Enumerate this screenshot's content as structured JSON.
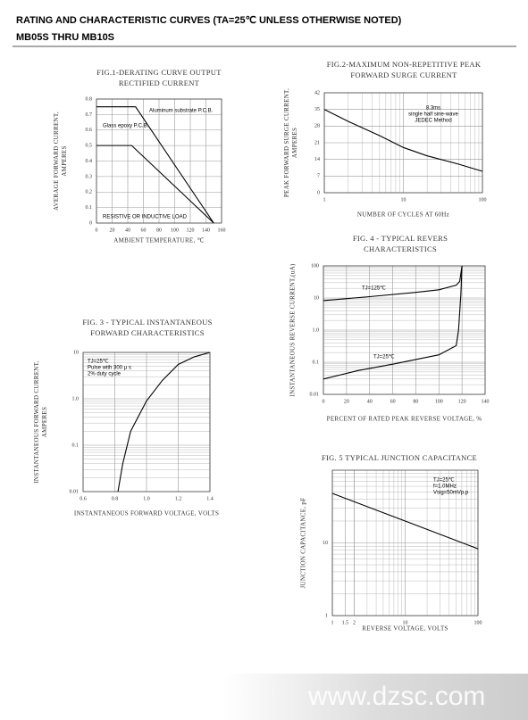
{
  "header": {
    "line1": "RATING AND CHARACTERISTIC CURVES (TA=25℃ UNLESS OTHERWISE NOTED)",
    "line2": "MB05S THRU MB10S"
  },
  "watermark": "www.dzsc.com",
  "chart_data": [
    {
      "type": "line",
      "title": [
        "FIG.1-DERATING CURVE OUTPUT",
        "RECTIFIED CURRENT"
      ],
      "xlabel": "AMBIENT TEMPERATURE, ℃",
      "ylabel": [
        "AVERAGE FORWARD CURRENT,",
        "AMPERES"
      ],
      "xlim": [
        0,
        160
      ],
      "xticks": [
        0,
        20,
        40,
        60,
        80,
        100,
        120,
        140,
        160
      ],
      "ylim": [
        0,
        0.8
      ],
      "yticks": [
        0,
        0.1,
        0.2,
        0.3,
        0.4,
        0.5,
        0.6,
        0.7,
        0.8
      ],
      "grid": true,
      "series": [
        {
          "name": "Aluminum substrate P.C.B.",
          "color": "#000000",
          "x": [
            0,
            50,
            150
          ],
          "values": [
            0.75,
            0.75,
            0
          ]
        },
        {
          "name": "Glass epoxy P.C.B.",
          "color": "#000000",
          "x": [
            0,
            45,
            150
          ],
          "values": [
            0.5,
            0.5,
            0
          ]
        }
      ],
      "annotations": [
        [
          "RESISTIVE OR INDUCTIVE LOAD"
        ]
      ]
    },
    {
      "type": "line",
      "title": [
        "FIG.2-MAXIMUM NON-REPETITIVE PEAK",
        "FORWARD SURGE CURRENT"
      ],
      "xlabel": "NUMBER OF CYCLES AT 60Hz",
      "ylabel": [
        "PEAK FORWARD SURGE CURRENT,",
        "AMPERES"
      ],
      "xscale": "log",
      "xlim": [
        1,
        100
      ],
      "xticks": [
        1,
        10,
        100
      ],
      "ylim": [
        0,
        42
      ],
      "yticks": [
        0,
        7,
        14,
        21,
        28,
        35,
        42
      ],
      "grid": true,
      "series": [
        {
          "color": "#000000",
          "x": [
            1,
            2,
            5,
            10,
            20,
            50,
            100
          ],
          "values": [
            35,
            30,
            24,
            19,
            15.5,
            12,
            9
          ]
        }
      ],
      "annotations": [
        [
          "8.3ms",
          "single half sine-wave",
          "JEDEC Method"
        ]
      ]
    },
    {
      "type": "line",
      "title": [
        "FIG. 3 - TYPICAL  INSTANTANEOUS",
        "FORWARD CHARACTERISTICS"
      ],
      "xlabel": "INSTANTANEOUS FORWARD VOLTAGE, VOLTS",
      "ylabel": [
        "INSTANTANEOUS FORWARD CURRENT,",
        "AMPERES"
      ],
      "xlim": [
        0.6,
        1.4
      ],
      "xticks": [
        0.6,
        0.8,
        {
          "value": 1,
          "label": "1.0"
        },
        1.2,
        1.4
      ],
      "yscale": "log",
      "ylim": [
        0.01,
        10
      ],
      "yticks": [
        0.01,
        0.1,
        {
          "value": 1,
          "label": "1.0"
        },
        10
      ],
      "grid": true,
      "series": [
        {
          "color": "#000000",
          "x": [
            0.82,
            0.85,
            0.9,
            1.0,
            1.1,
            1.2,
            1.3,
            1.4
          ],
          "values": [
            0.01,
            0.04,
            0.2,
            0.9,
            2.5,
            5.5,
            8,
            10
          ]
        }
      ],
      "annotations": [
        [
          "TJ=25℃",
          "Pulse with 300 μ s",
          "2% duty cycle"
        ]
      ]
    },
    {
      "type": "line",
      "title": [
        "FIG. 4 - TYPICAL REVERS",
        "CHARACTERISTICS"
      ],
      "xlabel": "PERCENT OF RATED PEAK REVERSE VOLTAGE, %",
      "ylabel": [
        "INSTANTANEOUS REVERSE CURRENT,(uA)"
      ],
      "xlim": [
        0,
        140
      ],
      "xticks": [
        0,
        20,
        40,
        60,
        80,
        100,
        120,
        140
      ],
      "yscale": "log",
      "ylim": [
        0.01,
        100
      ],
      "yticks": [
        0.01,
        0.1,
        {
          "value": 1,
          "label": "1.0"
        },
        10,
        100
      ],
      "grid": true,
      "series": [
        {
          "name": "TJ=125℃",
          "color": "#000000",
          "x": [
            0,
            40,
            80,
            100,
            115,
            118,
            120
          ],
          "values": [
            8.3,
            11,
            15,
            18,
            25,
            33,
            100
          ]
        },
        {
          "name": "TJ=25℃",
          "color": "#000000",
          "x": [
            0,
            30,
            60,
            100,
            115,
            117,
            119,
            120
          ],
          "values": [
            0.03,
            0.055,
            0.087,
            0.17,
            0.33,
            1,
            13,
            100
          ]
        }
      ],
      "annotations": []
    },
    {
      "type": "line",
      "title": [
        "FIG. 5  TYPICAL JUNCTION CAPACITANCE"
      ],
      "xlabel": "REVERSE VOLTAGE, VOLTS",
      "ylabel": [
        "JUNCTION CAPACITANCE, pF"
      ],
      "xscale": "log",
      "xlim": [
        1,
        100
      ],
      "xticks": [
        1,
        1.5,
        2,
        10,
        100
      ],
      "yscale": "log",
      "ylim": [
        1,
        100
      ],
      "yticks": [
        1,
        10
      ],
      "grid": true,
      "series": [
        {
          "color": "#000000",
          "x": [
            1,
            10,
            100
          ],
          "values": [
            48,
            20,
            8.3
          ]
        }
      ],
      "annotations": [
        [
          "TJ=25℃",
          "f=1.0MHz",
          "Vsig=50mVp.p"
        ]
      ]
    }
  ]
}
